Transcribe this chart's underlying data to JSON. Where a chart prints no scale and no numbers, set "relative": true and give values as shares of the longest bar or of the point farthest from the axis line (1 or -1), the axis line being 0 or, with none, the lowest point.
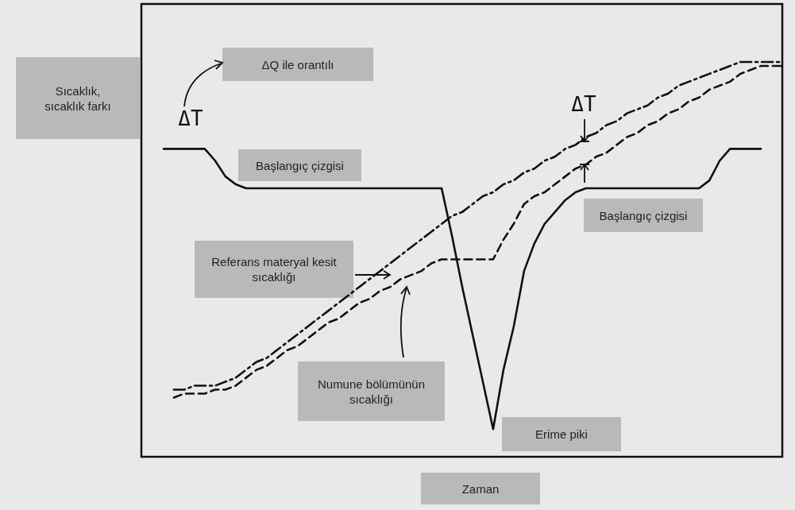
{
  "chart_data": {
    "type": "line",
    "relative": true,
    "xlabel": "Zaman",
    "ylabel": "Sıcaklık, sıcaklık farkı",
    "categories": [
      null,
      null,
      null,
      null,
      null,
      null,
      null,
      null,
      null,
      null,
      null,
      null,
      null,
      null,
      null,
      null,
      null,
      null,
      null,
      null,
      null,
      null,
      null,
      null,
      null,
      null,
      null,
      null,
      null,
      null,
      null,
      null,
      null,
      null,
      null,
      null,
      null,
      null,
      null,
      null,
      null,
      null,
      null,
      null,
      null,
      null,
      null,
      null,
      null,
      null,
      null,
      null,
      null,
      null,
      null,
      null,
      null,
      null,
      null,
      null,
      null
    ],
    "series": [
      {
        "color": "#111111",
        "line_style": "solid",
        "values": [
          0.78,
          0.78,
          0.78,
          0.78,
          0.78,
          0.75,
          0.71,
          0.69,
          0.68,
          0.68,
          0.68,
          0.68,
          0.68,
          0.68,
          0.68,
          0.68,
          0.68,
          0.68,
          0.68,
          0.68,
          0.68,
          0.68,
          0.68,
          0.68,
          0.68,
          0.68,
          0.68,
          0.68,
          0.56,
          0.43,
          0.31,
          0.19,
          0.07,
          0.22,
          0.33,
          0.47,
          0.54,
          0.59,
          0.62,
          0.65,
          0.67,
          0.68,
          0.68,
          0.68,
          0.68,
          0.68,
          0.68,
          0.68,
          0.68,
          0.68,
          0.68,
          0.68,
          0.68,
          0.7,
          0.75,
          0.78,
          0.78,
          0.78,
          0.78,
          null,
          null
        ]
      },
      {
        "color": "#111111",
        "line_style": "dashdot",
        "values": [
          null,
          0.17,
          0.17,
          0.18,
          0.18,
          0.18,
          0.19,
          0.2,
          0.22,
          0.24,
          0.25,
          0.27,
          0.29,
          0.31,
          0.33,
          0.35,
          0.37,
          0.39,
          0.41,
          0.43,
          0.45,
          0.47,
          0.49,
          0.51,
          0.53,
          0.55,
          0.57,
          0.59,
          0.61,
          0.62,
          0.64,
          0.66,
          0.67,
          0.69,
          0.7,
          0.72,
          0.73,
          0.75,
          0.76,
          0.78,
          0.79,
          0.81,
          0.82,
          0.84,
          0.85,
          0.87,
          0.88,
          0.89,
          0.91,
          0.92,
          0.94,
          0.95,
          0.96,
          0.97,
          0.98,
          0.99,
          1.0,
          1.0,
          1.0,
          1.0,
          1.0
        ]
      },
      {
        "color": "#111111",
        "line_style": "dashed",
        "values": [
          null,
          0.15,
          0.16,
          0.16,
          0.16,
          0.17,
          0.17,
          0.18,
          0.2,
          0.22,
          0.23,
          0.25,
          0.27,
          0.28,
          0.3,
          0.32,
          0.34,
          0.35,
          0.37,
          0.39,
          0.4,
          0.42,
          0.43,
          0.45,
          0.46,
          0.47,
          0.49,
          0.5,
          0.5,
          0.5,
          0.5,
          0.5,
          0.5,
          0.55,
          0.59,
          0.64,
          0.66,
          0.67,
          0.69,
          0.71,
          0.73,
          0.74,
          0.76,
          0.77,
          0.79,
          0.81,
          0.82,
          0.84,
          0.85,
          0.87,
          0.88,
          0.9,
          0.91,
          0.93,
          0.94,
          0.95,
          0.97,
          0.98,
          0.99,
          0.99,
          0.99
        ]
      }
    ],
    "annotations": [
      "ΔQ ile orantılı",
      "ΔT",
      "Başlangıç çizgisi",
      "ΔT",
      "Başlangıç çizgisi",
      "Referans materyal kesit sıcaklığı",
      "Numune bölümünün sıcaklığı",
      "Erime piki"
    ]
  }
}
